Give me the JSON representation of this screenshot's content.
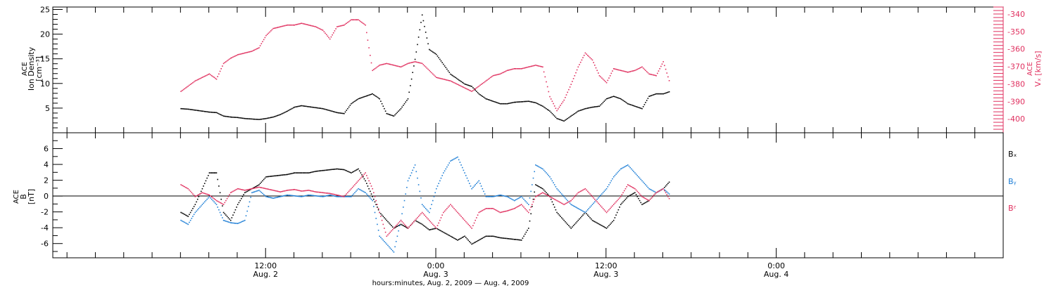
{
  "chart_data": [
    {
      "type": "scatter",
      "panel": "top",
      "ylabel_left": [
        "ACE",
        "Ion Density",
        "[cm⁻³]"
      ],
      "ylabel_right": [
        "ACE",
        "Vₓ [km/s]"
      ],
      "ylim_left": [
        0,
        25.5
      ],
      "yticks_left": [
        5,
        10,
        15,
        20,
        25
      ],
      "ylim_right": [
        -408,
        -336
      ],
      "yticks_right": [
        -340,
        -350,
        -360,
        -370,
        -380,
        -390,
        -400
      ],
      "grid": false,
      "series": [
        {
          "name": "",
          "color": "#000000",
          "axis": "left",
          "x": [
            0,
            1,
            2,
            3,
            4,
            5,
            6,
            7,
            8,
            9,
            10,
            11,
            12,
            13,
            14,
            15,
            16,
            17,
            18,
            19,
            20,
            21,
            22,
            23,
            24,
            25,
            26,
            27,
            28,
            29,
            30,
            31,
            32,
            33,
            34,
            35,
            36,
            37,
            38,
            39,
            40,
            41,
            42,
            43,
            44,
            45,
            46,
            47,
            48,
            49,
            50,
            51,
            52,
            53,
            54,
            55,
            56,
            57,
            58,
            59,
            60,
            61,
            62,
            63,
            64,
            65,
            66,
            67,
            68,
            69
          ],
          "values": [
            5,
            4.9,
            4.7,
            4.5,
            4.3,
            4.2,
            3.5,
            3.3,
            3.2,
            3.0,
            2.9,
            2.8,
            3.0,
            3.3,
            3.8,
            4.5,
            5.3,
            5.6,
            5.4,
            5.2,
            5.0,
            4.6,
            4.2,
            4.0,
            6,
            7,
            7.5,
            8,
            7,
            4,
            3.5,
            5,
            7,
            15,
            24,
            17,
            16,
            14,
            12,
            11,
            10,
            9.5,
            8,
            7,
            6.5,
            6,
            6,
            6.3,
            6.4,
            6.5,
            6.2,
            5.5,
            4.5,
            3.0,
            2.5,
            3.5,
            4.5,
            5.0,
            5.3,
            5.5,
            7,
            7.5,
            7,
            6,
            5.5,
            5,
            7.5,
            8,
            8,
            8.5
          ]
        },
        {
          "name": "",
          "color": "#e0305f",
          "axis": "right",
          "x": [
            0,
            1,
            2,
            3,
            4,
            5,
            6,
            7,
            8,
            9,
            10,
            11,
            12,
            13,
            14,
            15,
            16,
            17,
            18,
            19,
            20,
            21,
            22,
            23,
            24,
            25,
            26,
            27,
            28,
            29,
            30,
            31,
            32,
            33,
            34,
            35,
            36,
            37,
            38,
            39,
            40,
            41,
            42,
            43,
            44,
            45,
            46,
            47,
            48,
            49,
            50,
            51,
            52,
            53,
            54,
            55,
            56,
            57,
            58,
            59,
            60,
            61,
            62,
            63,
            64,
            65,
            66,
            67,
            68,
            69
          ],
          "values": [
            -384,
            -381,
            -378,
            -376,
            -374,
            -377,
            -368,
            -365,
            -363,
            -362,
            -361,
            -359,
            -352,
            -348,
            -347,
            -346,
            -346,
            -345,
            -346,
            -347,
            -349,
            -354,
            -347,
            -346,
            -343,
            -343,
            -346,
            -372,
            -369,
            -368,
            -369,
            -370,
            -368,
            -367,
            -368,
            -372,
            -376,
            -377,
            -378,
            -380,
            -382,
            -384,
            -381,
            -378,
            -375,
            -374,
            -372,
            -371,
            -371,
            -370,
            -369,
            -370,
            -387,
            -395,
            -389,
            -380,
            -370,
            -362,
            -366,
            -375,
            -379,
            -371,
            -372,
            -373,
            -372,
            -370,
            -374,
            -375,
            -367,
            -380
          ]
        }
      ]
    },
    {
      "type": "scatter",
      "panel": "bottom",
      "ylabel_left": [
        "ACE",
        "B",
        "[nT]"
      ],
      "ylim": [
        -7.8,
        8.0
      ],
      "yticks": [
        6,
        4,
        2,
        0,
        -2,
        -4,
        -6
      ],
      "zero_line": true,
      "grid": false,
      "legend_placement": "right",
      "series": [
        {
          "name": "Bₓ",
          "color": "#000000",
          "x": [
            0,
            1,
            2,
            3,
            4,
            5,
            6,
            7,
            8,
            9,
            10,
            11,
            12,
            13,
            14,
            15,
            16,
            17,
            18,
            19,
            20,
            21,
            22,
            23,
            24,
            25,
            26,
            27,
            28,
            29,
            30,
            31,
            32,
            33,
            34,
            35,
            36,
            37,
            38,
            39,
            40,
            41,
            42,
            43,
            44,
            45,
            46,
            47,
            48,
            49,
            50,
            51,
            52,
            53,
            54,
            55,
            56,
            57,
            58,
            59,
            60,
            61,
            62,
            63,
            64,
            65,
            66,
            67,
            68,
            69
          ],
          "values": [
            -2,
            -2.5,
            -1,
            1,
            3,
            3,
            -2,
            -3,
            -1,
            0.5,
            1,
            1.5,
            2.5,
            2.6,
            2.7,
            2.8,
            3,
            3,
            3,
            3.2,
            3.3,
            3.4,
            3.5,
            3.4,
            3,
            3.5,
            2,
            0,
            -2,
            -3,
            -4,
            -3.5,
            -4,
            -3,
            -3.5,
            -4.2,
            -4.0,
            -4.5,
            -5.0,
            -5.5,
            -5,
            -6,
            -5.5,
            -5,
            -5,
            -5.2,
            -5.3,
            -5.4,
            -5.5,
            -4,
            1.5,
            1,
            0,
            -2,
            -3,
            -4,
            -3,
            -2,
            -3,
            -3.5,
            -4,
            -3,
            -1,
            0,
            0.5,
            -1,
            -0.5,
            0.5,
            1,
            2
          ]
        },
        {
          "name": "Bᵧ",
          "color": "#1f7fd6",
          "x": [
            0,
            1,
            2,
            3,
            4,
            5,
            6,
            7,
            8,
            9,
            10,
            11,
            12,
            13,
            14,
            15,
            16,
            17,
            18,
            19,
            20,
            21,
            22,
            23,
            24,
            25,
            26,
            27,
            28,
            29,
            30,
            31,
            32,
            33,
            34,
            35,
            36,
            37,
            38,
            39,
            40,
            41,
            42,
            43,
            44,
            45,
            46,
            47,
            48,
            49,
            50,
            51,
            52,
            53,
            54,
            55,
            56,
            57,
            58,
            59,
            60,
            61,
            62,
            63,
            64,
            65,
            66,
            67,
            68,
            69
          ],
          "values": [
            -3,
            -3.5,
            -2,
            -1,
            0,
            -1,
            -3,
            -3.3,
            -3.4,
            -3,
            0.5,
            0.8,
            0,
            -0.2,
            0,
            0.2,
            0.1,
            0,
            0.2,
            0.1,
            0,
            0.2,
            0,
            0,
            0,
            1,
            0.5,
            -0.5,
            -5,
            -6,
            -7,
            -3,
            2,
            4,
            -1,
            -2,
            1,
            3,
            4.5,
            5,
            3,
            1,
            2,
            0,
            0,
            0.2,
            0,
            -0.5,
            0,
            -1,
            4,
            3.5,
            2.5,
            1,
            0,
            -1,
            -1.5,
            -2,
            -1,
            0,
            1,
            2.5,
            3.5,
            4,
            3,
            2,
            1,
            0.5,
            1,
            0.2
          ]
        },
        {
          "name": "Bᶻ",
          "color": "#e0305f",
          "x": [
            0,
            1,
            2,
            3,
            4,
            5,
            6,
            7,
            8,
            9,
            10,
            11,
            12,
            13,
            14,
            15,
            16,
            17,
            18,
            19,
            20,
            21,
            22,
            23,
            24,
            25,
            26,
            27,
            28,
            29,
            30,
            31,
            32,
            33,
            34,
            35,
            36,
            37,
            38,
            39,
            40,
            41,
            42,
            43,
            44,
            45,
            46,
            47,
            48,
            49,
            50,
            51,
            52,
            53,
            54,
            55,
            56,
            57,
            58,
            59,
            60,
            61,
            62,
            63,
            64,
            65,
            66,
            67,
            68,
            69
          ],
          "values": [
            1.5,
            1,
            0,
            0.5,
            0.2,
            -0.5,
            -1,
            0.5,
            1,
            0.8,
            1,
            1.2,
            1,
            0.8,
            0.6,
            0.8,
            0.9,
            0.7,
            0.8,
            0.6,
            0.5,
            0.4,
            0.2,
            0,
            1,
            2,
            3,
            1,
            -2,
            -5,
            -4,
            -3,
            -4,
            -3,
            -2,
            -3,
            -4,
            -2,
            -1,
            -2,
            -3,
            -4,
            -2,
            -1.5,
            -1.5,
            -2,
            -1.8,
            -1.5,
            -1,
            -2,
            0,
            0.5,
            0,
            -0.5,
            -1,
            -0.5,
            0.5,
            1,
            0,
            -1,
            -2,
            -1,
            0,
            1.5,
            1,
            0,
            -0.5,
            0.5,
            1,
            -0.5
          ]
        }
      ]
    }
  ],
  "x_axis": {
    "range": [
      -18,
      116
    ],
    "major_ticks": [
      {
        "x": 12,
        "time": "12:00",
        "date": "Aug. 2"
      },
      {
        "x": 36,
        "time": "0:00",
        "date": "Aug. 3"
      },
      {
        "x": 60,
        "time": "12:00",
        "date": "Aug. 3"
      },
      {
        "x": 84,
        "time": "0:00",
        "date": "Aug. 4"
      }
    ],
    "title": "hours:minutes, Aug.  2, 2009 — Aug.  4, 2009"
  }
}
